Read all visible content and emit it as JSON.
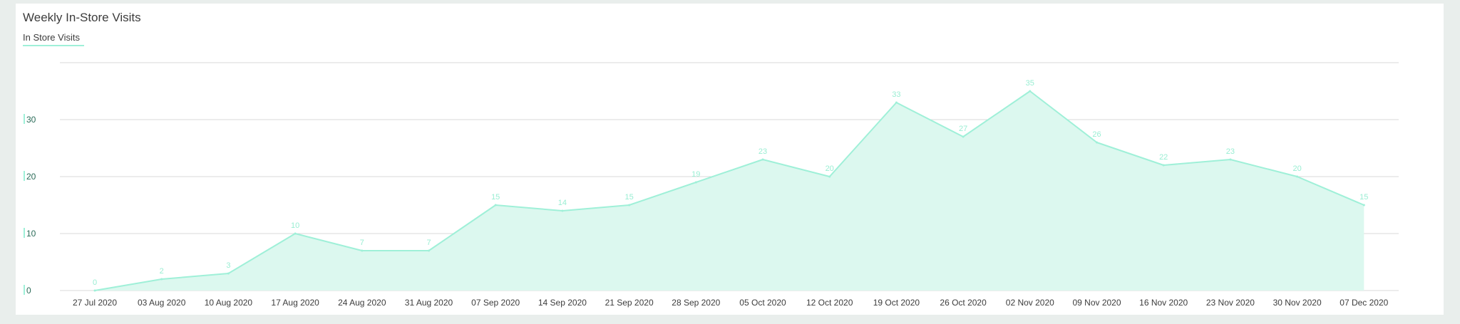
{
  "page": {
    "title": "Weekly In-Store Visits"
  },
  "colors": {
    "line": "#9ff0d8",
    "area": "#dcf8ef",
    "grid": "#d9d9d9",
    "ytick_text": "#2a6b58",
    "ytick_bar": "#9ff0d8",
    "label_text": "#9aeed3",
    "axis_text": "#3c3c3c"
  },
  "chart_data": {
    "type": "area",
    "title": "Weekly In-Store Visits",
    "xlabel": "",
    "ylabel": "",
    "ylim": [
      0,
      40
    ],
    "yticks": [
      0,
      10,
      20,
      30
    ],
    "grid": true,
    "legend": "top-left",
    "categories": [
      "27 Jul 2020",
      "03 Aug 2020",
      "10 Aug 2020",
      "17 Aug 2020",
      "24 Aug 2020",
      "31 Aug 2020",
      "07 Sep 2020",
      "14 Sep 2020",
      "21 Sep 2020",
      "28 Sep 2020",
      "05 Oct 2020",
      "12 Oct 2020",
      "19 Oct 2020",
      "26 Oct 2020",
      "02 Nov 2020",
      "09 Nov 2020",
      "16 Nov 2020",
      "23 Nov 2020",
      "30 Nov 2020",
      "07 Dec 2020"
    ],
    "series": [
      {
        "name": "In Store Visits",
        "values": [
          0,
          2,
          3,
          10,
          7,
          7,
          15,
          14,
          15,
          19,
          23,
          20,
          33,
          27,
          35,
          26,
          22,
          23,
          20,
          15
        ]
      }
    ]
  }
}
